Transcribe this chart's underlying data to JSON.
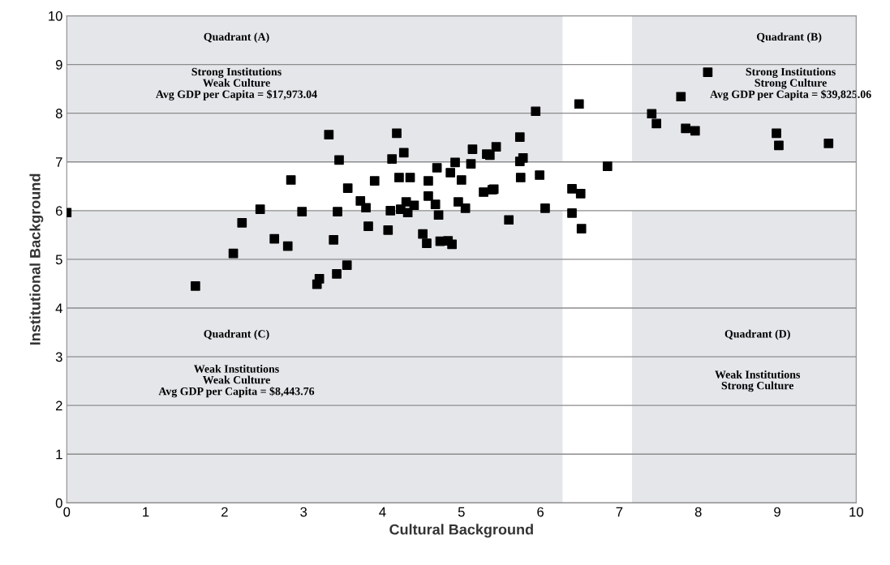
{
  "chart_data": {
    "type": "scatter",
    "xlabel": "Cultural Background",
    "ylabel": "Institutional Background",
    "xlim": [
      0,
      10
    ],
    "ylim": [
      0,
      10
    ],
    "xticks": [
      0,
      1,
      2,
      3,
      4,
      5,
      6,
      7,
      8,
      9,
      10
    ],
    "yticks": [
      0,
      1,
      2,
      3,
      4,
      5,
      6,
      7,
      8,
      9,
      10
    ],
    "grid": "y",
    "marker": "square",
    "legend": false,
    "bands": [
      {
        "axis": "x",
        "from": 6.28,
        "to": 7.16,
        "color": "#ffffff"
      },
      {
        "axis": "y",
        "from": 6,
        "to": 7,
        "color": "#ffffff"
      }
    ],
    "annotations": [
      "Quadrant (A)",
      "Strong Institutions\nWeak Culture\nAvg GDP per Capita = $17,973.04",
      "Quadrant (B)",
      "Strong Institutions\nStrong Culture\nAvg GDP per Capita = $39,825.06",
      "Quadrant (C)",
      "Weak Institutions\nWeak Culture\nAvg GDP per Capita = $8,443.76",
      "Quadrant (D)",
      "Weak Institutions\nStrong Culture"
    ],
    "series": [
      {
        "color": "#000000",
        "x": [
          0.0,
          1.63,
          2.11,
          2.22,
          2.45,
          2.63,
          2.8,
          2.84,
          2.98,
          3.17,
          3.2,
          3.42,
          3.55,
          3.32,
          4.18,
          5.94,
          6.49,
          3.45,
          4.27,
          4.12,
          5.14,
          5.32,
          5.36,
          5.44,
          5.74,
          5.74,
          5.78,
          4.92,
          5.12,
          4.69,
          4.86,
          5.0,
          5.75,
          5.99,
          3.9,
          4.21,
          4.35,
          4.58,
          3.56,
          6.4,
          6.51,
          5.28,
          5.39,
          5.41,
          3.72,
          3.79,
          3.43,
          4.1,
          4.3,
          4.23,
          4.32,
          4.4,
          4.58,
          4.67,
          4.71,
          4.96,
          5.05,
          6.06,
          6.4,
          6.52,
          5.6,
          3.82,
          4.07,
          3.38,
          4.51,
          4.56,
          4.73,
          4.83,
          4.88,
          6.85,
          7.78,
          8.12,
          7.41,
          7.47,
          7.84,
          7.96,
          8.99,
          9.02,
          9.65
        ],
        "values": [
          5.96,
          4.45,
          5.12,
          5.75,
          6.03,
          5.42,
          5.27,
          6.63,
          5.98,
          4.49,
          4.6,
          4.7,
          4.88,
          7.56,
          7.59,
          8.04,
          8.19,
          7.04,
          7.19,
          7.06,
          7.26,
          7.16,
          7.14,
          7.31,
          7.51,
          7.01,
          7.08,
          6.99,
          6.96,
          6.88,
          6.78,
          6.63,
          6.68,
          6.73,
          6.61,
          6.68,
          6.68,
          6.61,
          6.46,
          6.45,
          6.35,
          6.38,
          6.43,
          6.44,
          6.2,
          6.06,
          5.98,
          6.0,
          6.18,
          6.03,
          5.96,
          6.11,
          6.3,
          6.13,
          5.91,
          6.18,
          6.05,
          6.05,
          5.95,
          5.63,
          5.81,
          5.68,
          5.6,
          5.4,
          5.52,
          5.33,
          5.37,
          5.38,
          5.31,
          6.91,
          8.34,
          8.84,
          7.99,
          7.79,
          7.69,
          7.64,
          7.59,
          7.34,
          7.38
        ]
      }
    ]
  }
}
